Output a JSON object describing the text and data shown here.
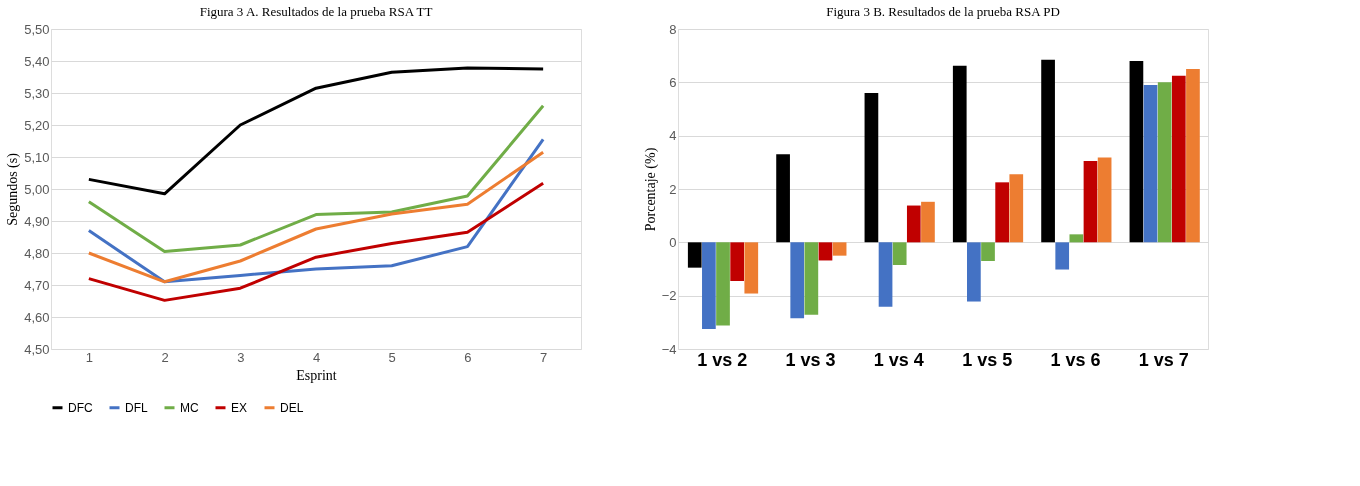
{
  "chart_data": [
    {
      "type": "line",
      "title": "Figura 3 A. Resultados de la prueba RSA TT",
      "xlabel": "Esprint",
      "ylabel": "Segundos (s)",
      "categories": [
        "1",
        "2",
        "3",
        "4",
        "5",
        "6",
        "7"
      ],
      "ylim": [
        4.5,
        5.5
      ],
      "yticks": [
        {
          "value": 4.5,
          "label": "4,50"
        },
        {
          "value": 4.6,
          "label": "4,60"
        },
        {
          "value": 4.7,
          "label": "4,70"
        },
        {
          "value": 4.8,
          "label": "4,80"
        },
        {
          "value": 4.9,
          "label": "4,90"
        },
        {
          "value": 5.0,
          "label": "5,00"
        },
        {
          "value": 5.1,
          "label": "5,10"
        },
        {
          "value": 5.2,
          "label": "5,20"
        },
        {
          "value": 5.3,
          "label": "5,30"
        },
        {
          "value": 5.4,
          "label": "5,40"
        },
        {
          "value": 5.5,
          "label": "5,50"
        }
      ],
      "series": [
        {
          "name": "DFC",
          "color": "#000000",
          "values": [
            5.03,
            4.985,
            5.2,
            5.315,
            5.365,
            5.378,
            5.375
          ]
        },
        {
          "name": "DFL",
          "color": "#4472c4",
          "values": [
            4.87,
            4.71,
            4.73,
            4.75,
            4.76,
            4.82,
            5.155
          ]
        },
        {
          "name": "MC",
          "color": "#70ad47",
          "values": [
            4.96,
            4.805,
            4.825,
            4.92,
            4.928,
            4.978,
            5.26
          ]
        },
        {
          "name": "EX",
          "color": "#c00000",
          "values": [
            4.72,
            4.652,
            4.69,
            4.787,
            4.83,
            4.865,
            5.018
          ]
        },
        {
          "name": "DEL",
          "color": "#ed7d31",
          "values": [
            4.8,
            4.71,
            4.775,
            4.875,
            4.922,
            4.952,
            5.115
          ]
        }
      ],
      "grid": "y",
      "legend": "bottom",
      "marker": "none",
      "line_style": "solid"
    },
    {
      "type": "bar",
      "title": "Figura 3 B. Resultados de la prueba RSA PD",
      "ylabel": "Porcentaje (%)",
      "categories": [
        "1 vs 2",
        "1 vs 3",
        "1 vs 4",
        "1 vs 5",
        "1 vs 6",
        "1 vs 7"
      ],
      "ylim": [
        -4,
        8
      ],
      "yticks": [
        -4,
        -2,
        0,
        2,
        4,
        6,
        8
      ],
      "series": [
        {
          "name": "DFC",
          "color": "#000000",
          "values": [
            -0.95,
            3.3,
            5.6,
            6.62,
            6.85,
            6.8
          ]
        },
        {
          "name": "DFL",
          "color": "#4472c4",
          "values": [
            -3.25,
            -2.85,
            -2.42,
            -2.22,
            -1.02,
            5.9
          ]
        },
        {
          "name": "MC",
          "color": "#70ad47",
          "values": [
            -3.12,
            -2.72,
            -0.85,
            -0.7,
            0.3,
            6.0
          ]
        },
        {
          "name": "EX",
          "color": "#c00000",
          "values": [
            -1.45,
            -0.68,
            1.38,
            2.25,
            3.05,
            6.25
          ]
        },
        {
          "name": "DEL",
          "color": "#ed7d31",
          "values": [
            -1.92,
            -0.5,
            1.52,
            2.55,
            3.18,
            6.5
          ]
        }
      ],
      "grid": "y",
      "legend": "bottom"
    }
  ]
}
